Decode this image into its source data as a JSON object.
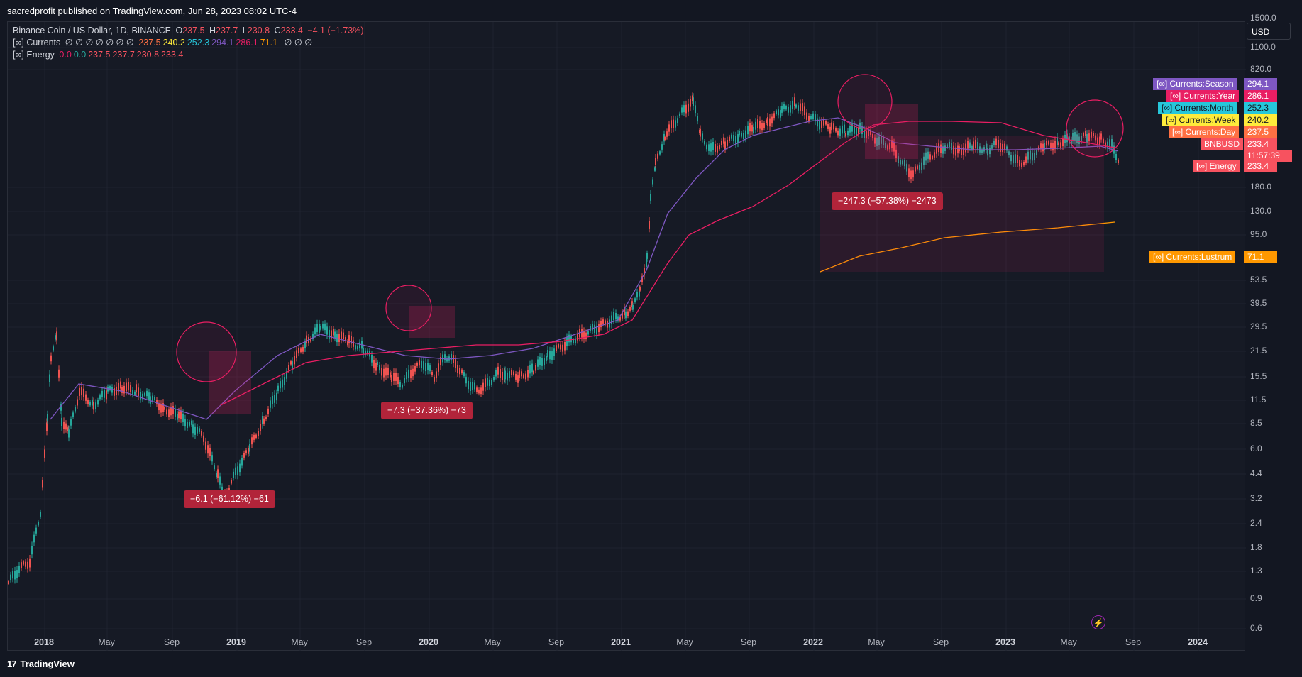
{
  "header": {
    "published": "sacredprofit published on TradingView.com, Jun 28, 2023 08:02 UTC-4"
  },
  "legend": {
    "symbol": "Binance Coin / US Dollar, 1D, BINANCE",
    "ohlc": {
      "o_label": "O",
      "o": "237.5",
      "h_label": "H",
      "h": "237.7",
      "l_label": "L",
      "l": "230.8",
      "c_label": "C",
      "c": "233.4",
      "change": "−4.1 (−1.73%)"
    },
    "currents": {
      "name": "[∞] Currents",
      "nulls": "∅ ∅ ∅ ∅ ∅ ∅ ∅",
      "values": [
        "237.5",
        "240.2",
        "252.3",
        "294.1",
        "286.1",
        "71.1"
      ],
      "colors": [
        "#ff7043",
        "#ffeb3b",
        "#26c6da",
        "#7e57c2",
        "#e91e63",
        "#ff9800"
      ],
      "tail": "∅ ∅ ∅"
    },
    "energy": {
      "name": "[∞] Energy",
      "values": [
        "0.0",
        "0.0",
        "237.5",
        "237.7",
        "230.8",
        "233.4"
      ],
      "colors": [
        "#e91e63",
        "#26a69a",
        "#f7525f",
        "#f7525f",
        "#f7525f",
        "#f7525f"
      ]
    }
  },
  "price_axis": {
    "currency": "USD",
    "ticks": [
      "1500.0",
      "1100.0",
      "820.0",
      "180.0",
      "130.0",
      "95.0",
      "53.5",
      "39.5",
      "29.5",
      "21.5",
      "15.5",
      "11.5",
      "8.5",
      "6.0",
      "4.4",
      "3.2",
      "2.4",
      "1.8",
      "1.3",
      "0.9",
      "0.6"
    ]
  },
  "time_axis": {
    "ticks": [
      {
        "label": "2018",
        "year": true
      },
      {
        "label": "May",
        "year": false
      },
      {
        "label": "Sep",
        "year": false
      },
      {
        "label": "2019",
        "year": true
      },
      {
        "label": "May",
        "year": false
      },
      {
        "label": "Sep",
        "year": false
      },
      {
        "label": "2020",
        "year": true
      },
      {
        "label": "May",
        "year": false
      },
      {
        "label": "Sep",
        "year": false
      },
      {
        "label": "2021",
        "year": true
      },
      {
        "label": "May",
        "year": false
      },
      {
        "label": "Sep",
        "year": false
      },
      {
        "label": "2022",
        "year": true
      },
      {
        "label": "May",
        "year": false
      },
      {
        "label": "Sep",
        "year": false
      },
      {
        "label": "2023",
        "year": true
      },
      {
        "label": "May",
        "year": false
      },
      {
        "label": "Sep",
        "year": false
      },
      {
        "label": "2024",
        "year": true
      }
    ]
  },
  "series_labels": [
    {
      "name": "[∞] Currents:Season",
      "value": "294.1",
      "color": "#7e57c2"
    },
    {
      "name": "[∞] Currents:Year",
      "value": "286.1",
      "color": "#e91e63"
    },
    {
      "name": "[∞] Currents:Month",
      "value": "252.3",
      "color": "#26c6da"
    },
    {
      "name": "[∞] Currents:Week",
      "value": "240.2",
      "color": "#ffeb3b"
    },
    {
      "name": "[∞] Currents:Day",
      "value": "237.5",
      "color": "#ff7043"
    },
    {
      "name": "BNBUSD",
      "value": "233.4",
      "color": "#f7525f",
      "extra": "11:57:39"
    },
    {
      "name": "[∞] Energy",
      "value": "233.4",
      "color": "#f7525f"
    },
    {
      "name": "[∞] Currents:Lustrum",
      "value": "71.1",
      "color": "#ff9800"
    }
  ],
  "measurements": [
    {
      "text": "−6.1 (−61.12%) −61"
    },
    {
      "text": "−7.3 (−37.36%) −73"
    },
    {
      "text": "−247.3 (−57.38%) −2473"
    }
  ],
  "footer": {
    "brand": "TradingView",
    "logo": "17"
  },
  "colors": {
    "background": "#131722",
    "up": "#26a69a",
    "down": "#ef5350",
    "season": "#7e57c2",
    "year": "#e91e63",
    "lustrum": "#ff9800"
  }
}
